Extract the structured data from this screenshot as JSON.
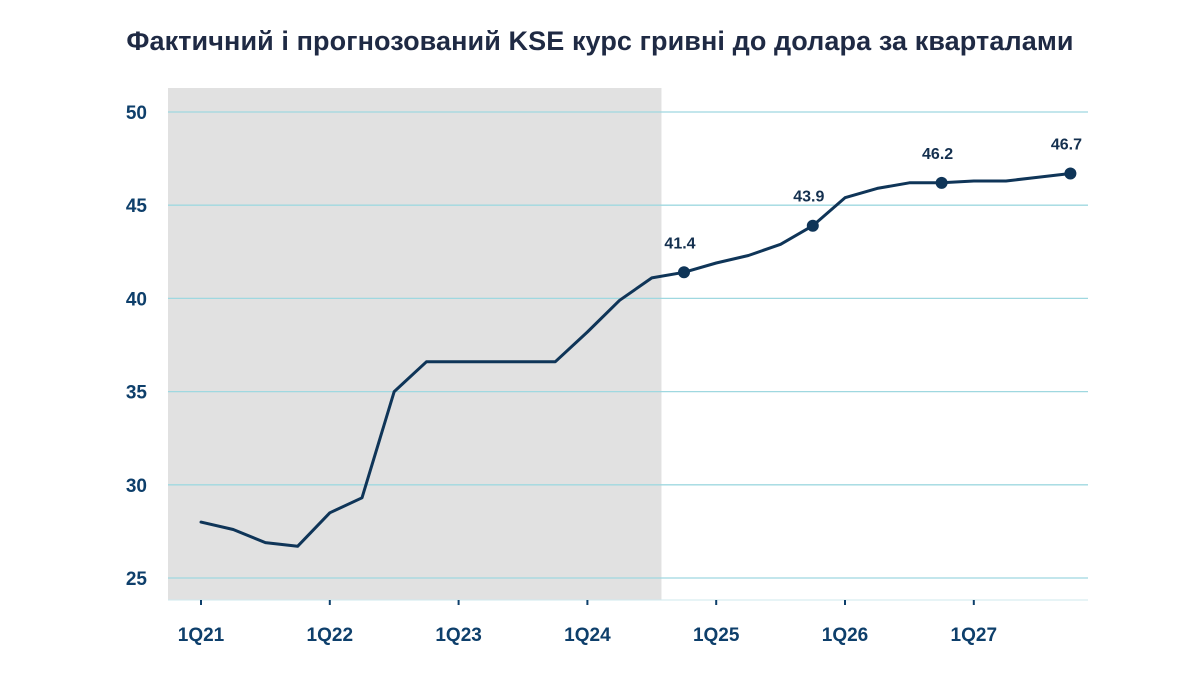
{
  "chart_data": {
    "type": "line",
    "title": "Фактичний і прогнозований KSE курс гривні до долара за кварталами",
    "xlabel": "",
    "ylabel": "",
    "ylim": [
      25,
      50
    ],
    "y_ticks": [
      "25",
      "30",
      "35",
      "40",
      "45",
      "50"
    ],
    "categories": [
      "1Q21",
      "2Q21",
      "3Q21",
      "4Q21",
      "1Q22",
      "2Q22",
      "3Q22",
      "4Q22",
      "1Q23",
      "2Q23",
      "3Q23",
      "4Q23",
      "1Q24",
      "2Q24",
      "3Q24",
      "4Q24",
      "1Q25",
      "2Q25",
      "3Q25",
      "4Q25",
      "1Q26",
      "2Q26",
      "3Q26",
      "4Q26",
      "1Q27",
      "2Q27",
      "3Q27",
      "4Q27"
    ],
    "x_tick_labels": [
      "1Q21",
      "1Q22",
      "1Q23",
      "1Q24",
      "1Q25",
      "1Q26",
      "1Q27"
    ],
    "series": [
      {
        "values": [
          28.0,
          27.6,
          26.9,
          26.7,
          28.5,
          29.3,
          35.0,
          36.6,
          36.6,
          36.6,
          36.6,
          36.6,
          38.2,
          39.9,
          41.1,
          41.4,
          41.9,
          42.3,
          42.9,
          43.9,
          45.4,
          45.9,
          46.2,
          46.2,
          46.3,
          46.3,
          46.5,
          46.7
        ],
        "color": "#0f3558"
      }
    ],
    "labeled_points": [
      {
        "category": "4Q24",
        "value": 41.4,
        "label": "41.4"
      },
      {
        "category": "4Q25",
        "value": 43.9,
        "label": "43.9"
      },
      {
        "category": "4Q26",
        "value": 46.2,
        "label": "46.2"
      },
      {
        "category": "4Q27",
        "value": 46.7,
        "label": "46.7"
      }
    ],
    "shaded_region": {
      "from": "1Q21",
      "to": "3Q24",
      "color": "#e1e1e1"
    },
    "grid": true,
    "grid_color": "#9fd8e0",
    "legend": "none"
  }
}
